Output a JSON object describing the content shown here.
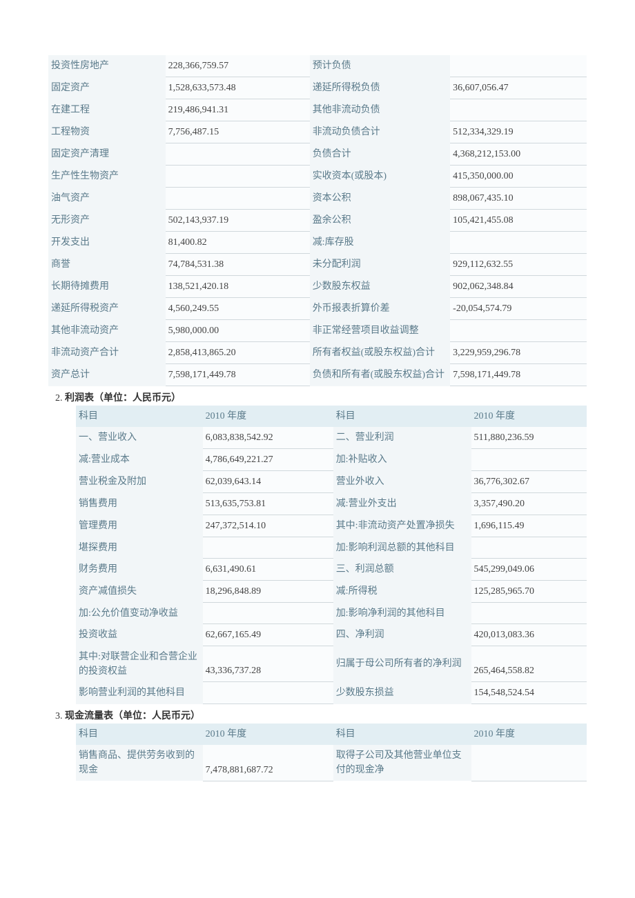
{
  "balanceSheet": {
    "rows": [
      {
        "l1": "投资性房地产",
        "v1": "228,366,759.57",
        "l2": "预计负债",
        "v2": ""
      },
      {
        "l1": "固定资产",
        "v1": "1,528,633,573.48",
        "l2": "递延所得税负债",
        "v2": "36,607,056.47"
      },
      {
        "l1": "在建工程",
        "v1": "219,486,941.31",
        "l2": "其他非流动负债",
        "v2": ""
      },
      {
        "l1": "工程物资",
        "v1": "7,756,487.15",
        "l2": "非流动负债合计",
        "v2": "512,334,329.19"
      },
      {
        "l1": "固定资产清理",
        "v1": "",
        "l2": "负债合计",
        "v2": "4,368,212,153.00"
      },
      {
        "l1": "生产性生物资产",
        "v1": "",
        "l2": "实收资本(或股本)",
        "v2": "415,350,000.00"
      },
      {
        "l1": "油气资产",
        "v1": "",
        "l2": "资本公积",
        "v2": "898,067,435.10"
      },
      {
        "l1": "无形资产",
        "v1": "502,143,937.19",
        "l2": "盈余公积",
        "v2": "105,421,455.08"
      },
      {
        "l1": "开发支出",
        "v1": "81,400.82",
        "l2": "减:库存股",
        "v2": ""
      },
      {
        "l1": "商誉",
        "v1": "74,784,531.38",
        "l2": "未分配利润",
        "v2": "929,112,632.55"
      },
      {
        "l1": "长期待摊费用",
        "v1": "138,521,420.18",
        "l2": "少数股东权益",
        "v2": "902,062,348.84"
      },
      {
        "l1": "递延所得税资产",
        "v1": "4,560,249.55",
        "l2": "外币报表折算价差",
        "v2": "-20,054,574.79"
      },
      {
        "l1": "其他非流动资产",
        "v1": "5,980,000.00",
        "l2": "非正常经营项目收益调整",
        "v2": ""
      },
      {
        "l1": "非流动资产合计",
        "v1": "2,858,413,865.20",
        "l2": "所有者权益(或股东权益)合计",
        "v2": "3,229,959,296.78"
      },
      {
        "l1": "资产总计",
        "v1": "7,598,171,449.78",
        "l2": "负债和所有者(或股东权益)合计",
        "v2": "7,598,171,449.78"
      }
    ]
  },
  "incomeSection": {
    "num": "2.",
    "title": "利润表（单位：人民币元）"
  },
  "incomeHeader": {
    "h1": "科目",
    "h2": "2010 年度",
    "h3": "科目",
    "h4": "2010 年度"
  },
  "incomeRows": [
    {
      "l1": "一、营业收入",
      "v1": "6,083,838,542.92",
      "l2": "二、营业利润",
      "v2": "511,880,236.59"
    },
    {
      "l1": "减:营业成本",
      "v1": "4,786,649,221.27",
      "l2": "加:补贴收入",
      "v2": ""
    },
    {
      "l1": "营业税金及附加",
      "v1": "62,039,643.14",
      "l2": "营业外收入",
      "v2": "36,776,302.67"
    },
    {
      "l1": "销售费用",
      "v1": "513,635,753.81",
      "l2": "减:营业外支出",
      "v2": "3,357,490.20"
    },
    {
      "l1": "管理费用",
      "v1": "247,372,514.10",
      "l2": "其中:非流动资产处置净损失",
      "v2": "1,696,115.49"
    },
    {
      "l1": "堪探费用",
      "v1": "",
      "l2": "加:影响利润总额的其他科目",
      "v2": ""
    },
    {
      "l1": "财务费用",
      "v1": "6,631,490.61",
      "l2": "三、利润总额",
      "v2": "545,299,049.06"
    },
    {
      "l1": "资产减值损失",
      "v1": "18,296,848.89",
      "l2": "减:所得税",
      "v2": "125,285,965.70"
    },
    {
      "l1": "加:公允价值变动净收益",
      "v1": "",
      "l2": "加:影响净利润的其他科目",
      "v2": ""
    },
    {
      "l1": "投资收益",
      "v1": "62,667,165.49",
      "l2": "四、净利润",
      "v2": "420,013,083.36"
    },
    {
      "l1": "其中:对联营企业和合营企业的投资权益",
      "v1": "43,336,737.28",
      "l2": "归属于母公司所有者的净利润",
      "v2": "265,464,558.82"
    },
    {
      "l1": "影响营业利润的其他科目",
      "v1": "",
      "l2": "少数股东损益",
      "v2": "154,548,524.54"
    }
  ],
  "cashSection": {
    "num": "3.",
    "title": "现金流量表（单位：人民币元）"
  },
  "cashHeader": {
    "h1": "科目",
    "h2": "2010 年度",
    "h3": "科目",
    "h4": "2010 年度"
  },
  "cashRows": [
    {
      "l1": "销售商品、提供劳务收到的现金",
      "v1": "7,478,881,687.72",
      "l2": "取得子公司及其他营业单位支付的现金净",
      "v2": ""
    }
  ]
}
